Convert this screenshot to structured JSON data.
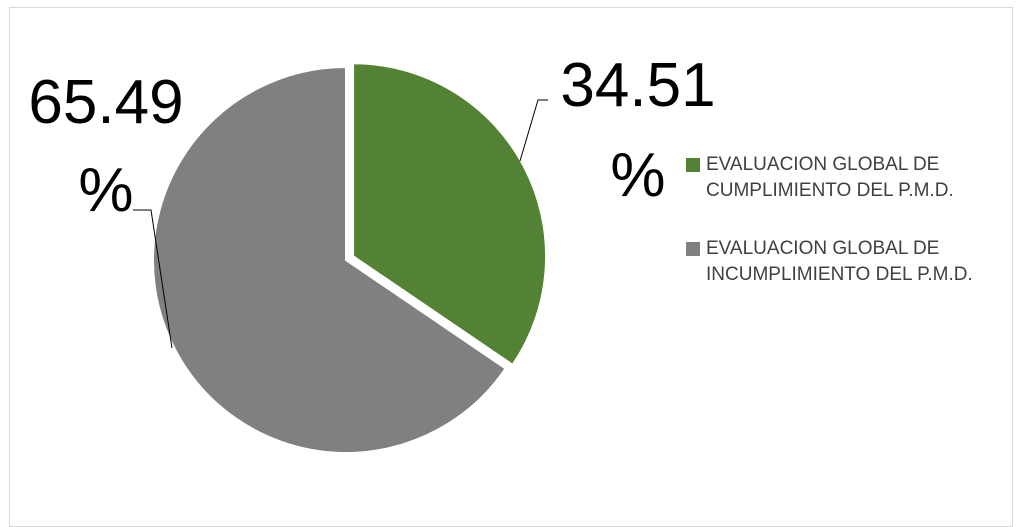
{
  "chart_data": {
    "type": "pie",
    "categories": [
      "EVALUACION GLOBAL DE CUMPLIMIENTO DEL P.M.D.",
      "EVALUACION GLOBAL DE INCUMPLIMIENTO DEL P.M.D."
    ],
    "values": [
      34.51,
      65.49
    ],
    "data_labels": [
      {
        "line1": "34.51",
        "line2": "%"
      },
      {
        "line1": "65.49",
        "line2": "%"
      }
    ],
    "colors": [
      "#548235",
      "#808080"
    ],
    "exploded": [
      true,
      false
    ],
    "legend_position": "right"
  }
}
